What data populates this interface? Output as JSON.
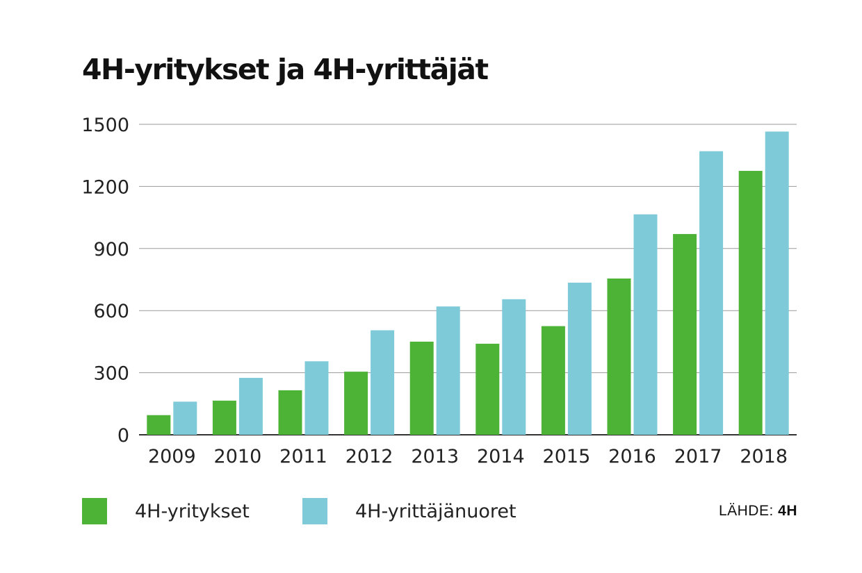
{
  "chart_data": {
    "type": "bar",
    "title": "4H-yritykset ja 4H-yrittäjät",
    "categories": [
      "2009",
      "2010",
      "2011",
      "2012",
      "2013",
      "2014",
      "2015",
      "2016",
      "2017",
      "2018"
    ],
    "series": [
      {
        "name": "4H-yritykset",
        "color": "#4db336",
        "values": [
          95,
          165,
          215,
          305,
          450,
          440,
          525,
          755,
          970,
          1275
        ]
      },
      {
        "name": "4H-yrittäjänuoret",
        "color": "#7ecad8",
        "values": [
          160,
          275,
          355,
          505,
          620,
          655,
          735,
          1065,
          1370,
          1465
        ]
      }
    ],
    "yticks": [
      0,
      300,
      600,
      900,
      1200,
      1500
    ],
    "ylim": [
      0,
      1500
    ],
    "grid": true,
    "legend_position": "bottom-left"
  },
  "source": {
    "label": "LÄHDE:",
    "value": "4H"
  }
}
